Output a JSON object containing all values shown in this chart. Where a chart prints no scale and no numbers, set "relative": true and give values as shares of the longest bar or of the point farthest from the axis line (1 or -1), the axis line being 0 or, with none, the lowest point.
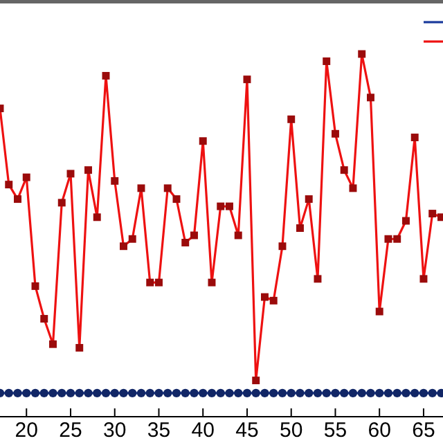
{
  "chart_data": {
    "type": "line",
    "relative": true,
    "x": [
      17,
      18,
      19,
      20,
      21,
      22,
      23,
      24,
      25,
      26,
      27,
      28,
      29,
      30,
      31,
      32,
      33,
      34,
      35,
      36,
      37,
      38,
      39,
      40,
      41,
      42,
      43,
      44,
      45,
      46,
      47,
      48,
      49,
      50,
      51,
      52,
      53,
      54,
      55,
      56,
      57,
      58,
      59,
      60,
      61,
      62,
      63,
      64,
      65,
      66,
      67
    ],
    "xlim": [
      17,
      67.2
    ],
    "xticks": [
      20,
      25,
      30,
      35,
      40,
      45,
      50,
      55,
      60,
      65
    ],
    "series": [
      {
        "color": "#1a3a9c",
        "marker": "circle",
        "values": [
          0.065,
          0.065,
          0.065,
          0.065,
          0.065,
          0.065,
          0.065,
          0.065,
          0.065,
          0.065,
          0.065,
          0.065,
          0.065,
          0.065,
          0.065,
          0.065,
          0.065,
          0.065,
          0.065,
          0.065,
          0.065,
          0.065,
          0.065,
          0.065,
          0.065,
          0.065,
          0.065,
          0.065,
          0.065,
          0.065,
          0.065,
          0.065,
          0.065,
          0.065,
          0.065,
          0.065,
          0.065,
          0.065,
          0.065,
          0.065,
          0.065,
          0.065,
          0.065,
          0.065,
          0.065,
          0.065,
          0.065,
          0.065,
          0.065,
          0.065,
          0.065
        ]
      },
      {
        "color": "#ee1111",
        "marker": "square",
        "values": [
          0.85,
          0.64,
          0.6,
          0.66,
          0.36,
          0.27,
          0.2,
          0.59,
          0.67,
          0.19,
          0.68,
          0.55,
          0.94,
          0.65,
          0.47,
          0.49,
          0.63,
          0.37,
          0.37,
          0.63,
          0.6,
          0.48,
          0.5,
          0.76,
          0.37,
          0.58,
          0.58,
          0.5,
          0.93,
          0.1,
          0.33,
          0.32,
          0.47,
          0.82,
          0.52,
          0.6,
          0.38,
          0.98,
          0.78,
          0.68,
          0.63,
          1,
          0.88,
          0.29,
          0.49,
          0.49,
          0.54,
          0.77,
          0.38,
          0.56,
          0.55
        ]
      }
    ]
  }
}
